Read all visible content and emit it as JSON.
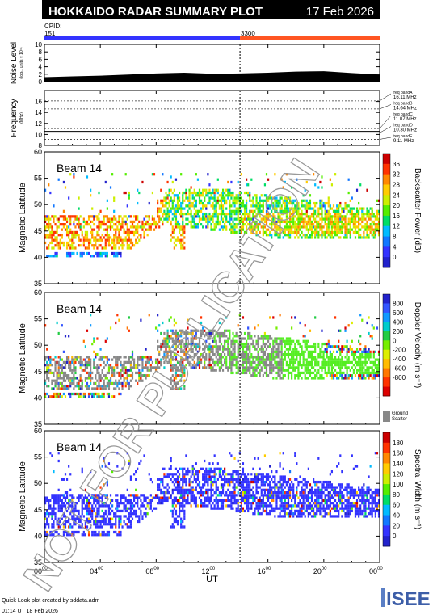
{
  "header": {
    "title": "HOKKAIDO RADAR SUMMARY PLOT",
    "date": "17 Feb 2026"
  },
  "cpid": {
    "label": "CPID:",
    "segments": [
      {
        "id": "151",
        "color": "#3333ff",
        "start_h": 0,
        "end_h": 14
      },
      {
        "id": "3300",
        "color": "#ff5522",
        "start_h": 14,
        "end_h": 24
      }
    ]
  },
  "watermark": "NOT FOR PUBLICATION",
  "footer": {
    "line1": "Quick Look plot created by sddata.adm",
    "line2": "01:14 UT 18 Feb 2026",
    "logo": "ISEE"
  },
  "colors": {
    "bar": "#000000",
    "watermark": "#999999"
  },
  "chart_data": [
    {
      "type": "area",
      "name": "noise_level",
      "ylabel": "Noise Level",
      "ylabel2": "(log₁₀ units × 10⁴)",
      "ylim": [
        0,
        10
      ],
      "yticks": [
        0,
        2,
        4,
        6,
        8,
        10
      ],
      "xlim": [
        0,
        24
      ],
      "x": [
        0,
        2,
        4,
        6,
        8,
        10,
        12,
        14,
        16,
        18,
        20,
        22,
        24
      ],
      "values": [
        1.2,
        1.4,
        1.6,
        1.9,
        2.2,
        2.4,
        2.1,
        2.2,
        2.4,
        2.7,
        2.8,
        2.3,
        1.9
      ]
    },
    {
      "type": "line",
      "name": "frequency",
      "ylabel": "Frequency",
      "ylabel2": "(MHz)",
      "ylim": [
        8,
        18
      ],
      "yticks": [
        8,
        10,
        12,
        14,
        16
      ],
      "xlim": [
        0,
        24
      ],
      "bands": [
        {
          "label": "freq bandA",
          "value": "16.11 MHz",
          "freq": 16.11
        },
        {
          "label": "freq bandB",
          "value": "14.64 MHz",
          "freq": 14.64
        },
        {
          "label": "freq bandC",
          "value": "11.07 MHz",
          "freq": 11.07
        },
        {
          "label": "freq bandD",
          "value": "10.30 MHz",
          "freq": 10.3
        },
        {
          "label": "freq bandE",
          "value": "9.11 MHz",
          "freq": 9.11
        }
      ],
      "solid_freq": 10.55
    },
    {
      "type": "heatmap",
      "name": "power",
      "beam": "Beam 14",
      "ylabel": "Magnetic Latitude",
      "ylim": [
        35,
        60
      ],
      "yticks": [
        35,
        40,
        45,
        50,
        55,
        60
      ],
      "xlim": [
        0,
        24
      ],
      "colorbar_label": "Backscatter Power (dB)",
      "colorbar_ticks": [
        "0",
        "4",
        "8",
        "12",
        "16",
        "20",
        "24",
        "28",
        "32",
        "36"
      ],
      "colorbar_colors": [
        "#2222cc",
        "#3333ff",
        "#1177ff",
        "#00bbff",
        "#00dd66",
        "#55ee00",
        "#ccee00",
        "#ffcc00",
        "#ff8800",
        "#ff3300",
        "#cc0000"
      ]
    },
    {
      "type": "heatmap",
      "name": "velocity",
      "beam": "Beam 14",
      "ylabel": "Magnetic Latitude",
      "ylim": [
        35,
        60
      ],
      "yticks": [
        35,
        40,
        45,
        50,
        55,
        60
      ],
      "xlim": [
        0,
        24
      ],
      "colorbar_label": "Doppler Velocity (m s⁻¹)",
      "colorbar_ticks": [
        "800",
        "600",
        "400",
        "200",
        "0",
        "-200",
        "-400",
        "-600",
        "-800"
      ],
      "colorbar_colors": [
        "#2222cc",
        "#3355ff",
        "#1199ff",
        "#00cccc",
        "#22cc44",
        "#77ee00",
        "#ddee00",
        "#ffbb00",
        "#ff7700",
        "#ff3300",
        "#dd0000"
      ],
      "ground_scatter_label": [
        "Ground",
        "Scatter"
      ],
      "ground_color": "#888888"
    },
    {
      "type": "heatmap",
      "name": "width",
      "beam": "Beam 14",
      "ylabel": "Magnetic Latitude",
      "ylim": [
        35,
        60
      ],
      "yticks": [
        35,
        40,
        45,
        50,
        55,
        60
      ],
      "xlim": [
        0,
        24
      ],
      "colorbar_label": "Spectral Width (m s⁻¹)",
      "colorbar_ticks": [
        "0",
        "20",
        "40",
        "60",
        "80",
        "100",
        "120",
        "140",
        "160",
        "180"
      ],
      "colorbar_colors": [
        "#2222cc",
        "#3333ff",
        "#1177ff",
        "#00bbff",
        "#00dd66",
        "#55ee00",
        "#ccee00",
        "#ffcc00",
        "#ff8800",
        "#ff3300",
        "#cc0000"
      ]
    }
  ],
  "x_axis": {
    "label": "UT",
    "ticks": [
      {
        "h": 0,
        "hh": "00",
        "mm": "00"
      },
      {
        "h": 4,
        "hh": "04",
        "mm": "00"
      },
      {
        "h": 8,
        "hh": "08",
        "mm": "00"
      },
      {
        "h": 12,
        "hh": "12",
        "mm": "00"
      },
      {
        "h": 16,
        "hh": "16",
        "mm": "00"
      },
      {
        "h": 20,
        "hh": "20",
        "mm": "00"
      },
      {
        "h": 24,
        "hh": "00",
        "mm": "00"
      }
    ]
  },
  "cpid_change_h": 14
}
